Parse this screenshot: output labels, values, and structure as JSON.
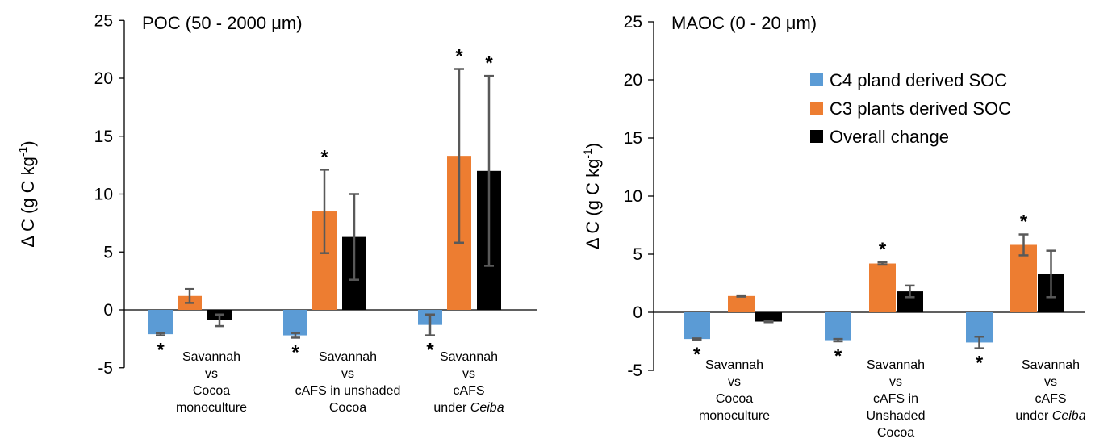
{
  "colors": {
    "c4": "#5B9BD5",
    "c3": "#ED7D31",
    "overall": "#000000",
    "error": "#595959"
  },
  "legend": [
    "C4 pland derived SOC",
    "C3 plants derived SOC",
    "Overall change"
  ],
  "chart_data": [
    {
      "type": "bar",
      "title": "POC (50 - 2000 μm)",
      "ylabel": "Δ C (g C kg-1)",
      "ylim": [
        -5,
        25
      ],
      "yticks": [
        "25",
        "20",
        "15",
        "10",
        "5",
        "0",
        "-5"
      ],
      "categories": [
        [
          "Savannah",
          "vs",
          "Cocoa",
          "monoculture"
        ],
        [
          "Savannah",
          "vs",
          "cAFS in unshaded",
          "Cocoa"
        ],
        [
          "Savannah",
          "vs",
          "cAFS",
          "under Ceiba"
        ]
      ],
      "series": [
        {
          "name": "C4 pland derived SOC",
          "values": [
            -2.1,
            -2.2,
            -1.3
          ],
          "err": [
            0.1,
            0.2,
            0.9
          ],
          "sig": [
            true,
            true,
            true
          ]
        },
        {
          "name": "C3 plants derived SOC",
          "values": [
            1.2,
            8.5,
            13.3
          ],
          "err": [
            0.6,
            3.6,
            7.5
          ],
          "sig": [
            false,
            true,
            true
          ]
        },
        {
          "name": "Overall change",
          "values": [
            -0.9,
            6.3,
            12.0
          ],
          "err": [
            0.5,
            3.7,
            8.2
          ],
          "sig": [
            false,
            false,
            true
          ]
        }
      ]
    },
    {
      "type": "bar",
      "title": "MAOC (0 - 20 μm)",
      "ylabel": "Δ C (g C kg-1)",
      "ylim": [
        -5,
        25
      ],
      "yticks": [
        "25",
        "20",
        "15",
        "10",
        "5",
        "0",
        "-5"
      ],
      "categories": [
        [
          "Savannah",
          "vs",
          "Cocoa",
          "monoculture"
        ],
        [
          "Savannah",
          "vs",
          "cAFS in",
          "Unshaded",
          "Cocoa"
        ],
        [
          "Savannah",
          "vs",
          "cAFS",
          "under Ceiba"
        ]
      ],
      "series": [
        {
          "name": "C4 pland derived SOC",
          "values": [
            -2.3,
            -2.4,
            -2.6
          ],
          "err": [
            0.05,
            0.1,
            0.5
          ],
          "sig": [
            true,
            true,
            true
          ]
        },
        {
          "name": "C3 plants derived SOC",
          "values": [
            1.4,
            4.2,
            5.8
          ],
          "err": [
            0.05,
            0.1,
            0.9
          ],
          "sig": [
            false,
            true,
            true
          ]
        },
        {
          "name": "Overall change",
          "values": [
            -0.8,
            1.8,
            3.3
          ],
          "err": [
            0.05,
            0.5,
            2.0
          ],
          "sig": [
            false,
            false,
            false
          ]
        }
      ]
    }
  ]
}
